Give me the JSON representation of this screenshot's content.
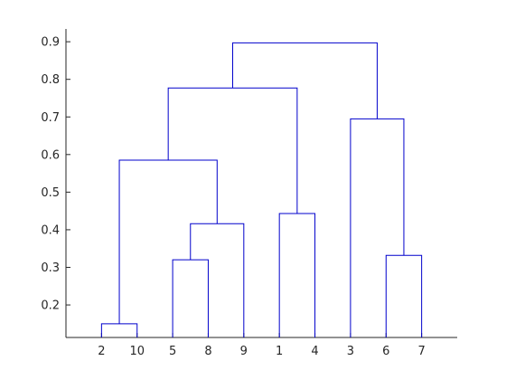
{
  "chart_data": {
    "type": "dendrogram",
    "categories": [
      "2",
      "10",
      "5",
      "8",
      "9",
      "1",
      "4",
      "3",
      "6",
      "7"
    ],
    "links": [
      {
        "left": 0,
        "right": 1,
        "height": 0.15
      },
      {
        "left": 2,
        "right": 3,
        "height": 0.32
      },
      {
        "left": 8,
        "right": 9,
        "height": 0.332
      },
      {
        "left": 11,
        "right": 4,
        "height": 0.416
      },
      {
        "left": 5,
        "right": 6,
        "height": 0.443
      },
      {
        "left": 10,
        "right": 13,
        "height": 0.585
      },
      {
        "left": 7,
        "right": 12,
        "height": 0.695
      },
      {
        "left": 15,
        "right": 14,
        "height": 0.777
      },
      {
        "left": 17,
        "right": 16,
        "height": 0.897
      }
    ],
    "color": "#0000cc",
    "xlim": [
      0,
      11
    ],
    "ylim": [
      0.1135,
      0.934
    ],
    "yticks": [
      0.2,
      0.3,
      0.4,
      0.5,
      0.6,
      0.7,
      0.8,
      0.9
    ]
  }
}
